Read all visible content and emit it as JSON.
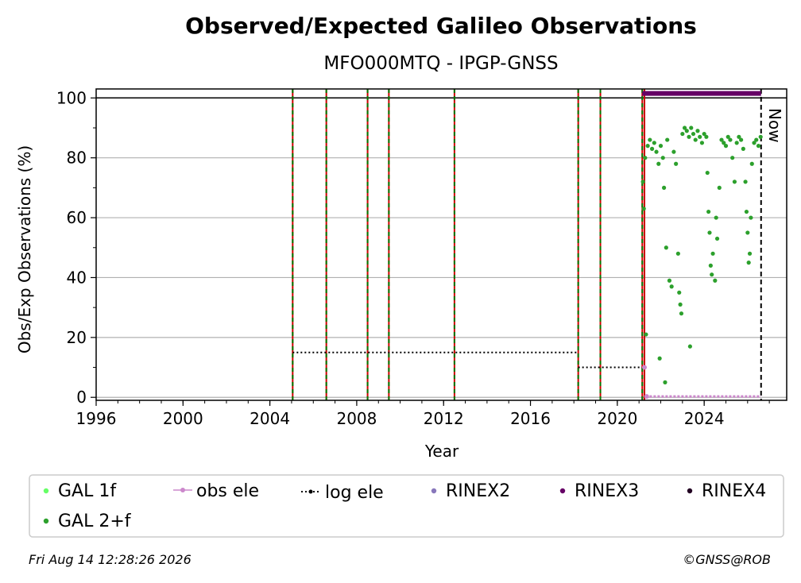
{
  "chart_data": {
    "type": "scatter",
    "title": "Observed/Expected Galileo Observations",
    "subtitle": "MFO000MTQ - IPGP-GNSS",
    "xlabel": "Year",
    "ylabel": "Obs/Exp Observations (%)",
    "xlim": [
      1996,
      2027.8
    ],
    "ylim": [
      -1,
      103
    ],
    "x_ticks": [
      1996,
      2000,
      2004,
      2008,
      2012,
      2016,
      2020,
      2024
    ],
    "y_ticks": [
      0,
      20,
      40,
      60,
      80,
      100
    ],
    "grid": "horizontal",
    "reference_line_y": 100,
    "now_label": "Now",
    "now_x": 2026.62,
    "colors": {
      "gal_1f": "#66ff66",
      "gal_2f": "#2ca02c",
      "obs_ele": "#cc88cc",
      "log_ele": "#000000",
      "rinex2": "#8877bb",
      "rinex3": "#660066",
      "rinex4": "#220022",
      "event_red": "#cc0000",
      "event_green": "#007700"
    },
    "event_lines_x": [
      2005.05,
      2006.6,
      2008.5,
      2009.48,
      2012.5,
      2018.2,
      2019.22,
      2021.15
    ],
    "receiver_change_x": 2021.25,
    "rinex3_bar": {
      "x_start": 2021.15,
      "x_end": 2026.62,
      "y": 101.5
    },
    "log_ele_segments": [
      {
        "x_start": 2005.05,
        "x_end": 2018.2,
        "y": 15
      },
      {
        "x_start": 2018.2,
        "x_end": 2021.15,
        "y": 10
      }
    ],
    "obs_ele_points": [
      {
        "x": 2021.25,
        "y": 10
      },
      {
        "x": 2021.35,
        "y": 0.3
      }
    ],
    "series": [
      {
        "name": "GAL 2+f",
        "points": [
          [
            2021.18,
            72
          ],
          [
            2021.22,
            63
          ],
          [
            2021.28,
            80
          ],
          [
            2021.32,
            21
          ],
          [
            2021.4,
            84
          ],
          [
            2021.5,
            86
          ],
          [
            2021.6,
            83
          ],
          [
            2021.7,
            85
          ],
          [
            2021.8,
            82
          ],
          [
            2021.9,
            78
          ],
          [
            2021.95,
            13
          ],
          [
            2022.0,
            84
          ],
          [
            2022.1,
            80
          ],
          [
            2022.15,
            70
          ],
          [
            2022.2,
            5
          ],
          [
            2022.25,
            50
          ],
          [
            2022.3,
            86
          ],
          [
            2022.4,
            39
          ],
          [
            2022.5,
            37
          ],
          [
            2022.6,
            82
          ],
          [
            2022.7,
            78
          ],
          [
            2022.8,
            48
          ],
          [
            2022.85,
            35
          ],
          [
            2022.9,
            31
          ],
          [
            2022.95,
            28
          ],
          [
            2023.0,
            88
          ],
          [
            2023.1,
            90
          ],
          [
            2023.2,
            89
          ],
          [
            2023.3,
            87
          ],
          [
            2023.35,
            17
          ],
          [
            2023.4,
            90
          ],
          [
            2023.5,
            88
          ],
          [
            2023.6,
            86
          ],
          [
            2023.7,
            89
          ],
          [
            2023.8,
            87
          ],
          [
            2023.9,
            85
          ],
          [
            2024.0,
            88
          ],
          [
            2024.1,
            87
          ],
          [
            2024.15,
            75
          ],
          [
            2024.2,
            62
          ],
          [
            2024.25,
            55
          ],
          [
            2024.3,
            44
          ],
          [
            2024.35,
            41
          ],
          [
            2024.4,
            48
          ],
          [
            2024.5,
            39
          ],
          [
            2024.55,
            60
          ],
          [
            2024.6,
            53
          ],
          [
            2024.7,
            70
          ],
          [
            2024.8,
            86
          ],
          [
            2024.9,
            85
          ],
          [
            2025.0,
            84
          ],
          [
            2025.1,
            87
          ],
          [
            2025.2,
            86
          ],
          [
            2025.3,
            80
          ],
          [
            2025.4,
            72
          ],
          [
            2025.5,
            85
          ],
          [
            2025.6,
            87
          ],
          [
            2025.7,
            86
          ],
          [
            2025.8,
            83
          ],
          [
            2025.9,
            72
          ],
          [
            2025.95,
            62
          ],
          [
            2026.0,
            55
          ],
          [
            2026.05,
            45
          ],
          [
            2026.1,
            48
          ],
          [
            2026.15,
            60
          ],
          [
            2026.2,
            78
          ],
          [
            2026.3,
            85
          ],
          [
            2026.4,
            86
          ],
          [
            2026.5,
            84
          ],
          [
            2026.6,
            87
          ]
        ]
      }
    ],
    "legend": {
      "placement": "bottom",
      "entries": [
        {
          "label": "GAL 1f",
          "key": "gal_1f"
        },
        {
          "label": "obs ele",
          "key": "obs_ele"
        },
        {
          "label": "log ele",
          "key": "log_ele"
        },
        {
          "label": "RINEX2",
          "key": "rinex2"
        },
        {
          "label": "RINEX3",
          "key": "rinex3"
        },
        {
          "label": "RINEX4",
          "key": "rinex4"
        },
        {
          "label": "GAL 2+f",
          "key": "gal_2f"
        }
      ]
    }
  },
  "footer": {
    "timestamp": "Fri Aug 14 12:28:26 2026",
    "credit": "©GNSS@ROB"
  }
}
